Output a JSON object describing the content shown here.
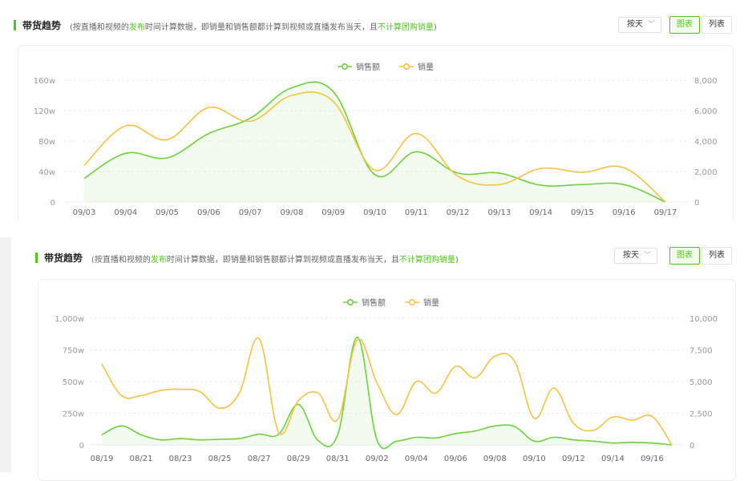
{
  "header": {
    "title": "带货趋势",
    "note_1": "(按直播和视频的",
    "note_highlight_1": "发布",
    "note_2": "时间计算数据，即销量和销售额都计算到视频或直播发布当天，且",
    "note_highlight_2": "不计算团购销量",
    "note_3": ")",
    "granularity": "按天",
    "view_chart": "图表",
    "view_list": "列表"
  },
  "colors": {
    "sales_amount": "#6fcf3f",
    "sales_volume": "#f5c146",
    "accent": "#52c41a",
    "grid": "#eeeeee",
    "tick": "#999999"
  },
  "chart_data": [
    {
      "type": "line",
      "legend_position": "top-center",
      "grid": true,
      "x": [
        "09/03",
        "09/04",
        "09/05",
        "09/06",
        "09/07",
        "09/08",
        "09/09",
        "09/10",
        "09/11",
        "09/12",
        "09/13",
        "09/14",
        "09/15",
        "09/16",
        "09/17"
      ],
      "y_left_ticks": [
        "0",
        "40w",
        "80w",
        "120w",
        "160w"
      ],
      "y_left_range": [
        0,
        160
      ],
      "y_right_ticks": [
        "0",
        "2,000",
        "4,000",
        "6,000",
        "8,000"
      ],
      "y_right_range": [
        0,
        8000
      ],
      "series": [
        {
          "name": "销售额",
          "axis": "left",
          "color": "#6fcf3f",
          "area": true,
          "values": [
            31,
            64,
            58,
            90,
            110,
            150,
            145,
            36,
            66,
            38,
            38,
            22,
            23,
            23,
            0
          ]
        },
        {
          "name": "销量",
          "axis": "right",
          "color": "#f5c146",
          "area": false,
          "values": [
            2400,
            5000,
            4100,
            6200,
            5300,
            7000,
            6600,
            2100,
            4500,
            1700,
            1150,
            2200,
            1950,
            2250,
            0
          ]
        }
      ]
    },
    {
      "type": "line",
      "legend_position": "top-center",
      "grid": true,
      "x_labels": [
        "08/19",
        "08/21",
        "08/23",
        "08/25",
        "08/27",
        "08/29",
        "08/31",
        "09/02",
        "09/04",
        "09/06",
        "09/08",
        "09/10",
        "09/12",
        "09/14",
        "09/16"
      ],
      "x": [
        "08/19",
        "08/20",
        "08/21",
        "08/22",
        "08/23",
        "08/24",
        "08/25",
        "08/26",
        "08/27",
        "08/28",
        "08/29",
        "08/30",
        "08/31",
        "09/01",
        "09/02",
        "09/03",
        "09/04",
        "09/05",
        "09/06",
        "09/07",
        "09/08",
        "09/09",
        "09/10",
        "09/11",
        "09/12",
        "09/13",
        "09/14",
        "09/15",
        "09/16",
        "09/17"
      ],
      "y_left_ticks": [
        "0",
        "250w",
        "500w",
        "750w",
        "1,000w"
      ],
      "y_left_range": [
        0,
        1000
      ],
      "y_right_ticks": [
        "0",
        "2,500",
        "5,000",
        "7,500",
        "10,000"
      ],
      "y_right_range": [
        0,
        10000
      ],
      "series": [
        {
          "name": "销售额",
          "axis": "left",
          "color": "#6fcf3f",
          "area": true,
          "values": [
            80,
            150,
            80,
            40,
            50,
            40,
            45,
            50,
            85,
            85,
            320,
            35,
            80,
            850,
            40,
            30,
            60,
            55,
            90,
            110,
            150,
            145,
            30,
            60,
            40,
            30,
            15,
            20,
            15,
            0
          ]
        },
        {
          "name": "销量",
          "axis": "right",
          "color": "#f5c146",
          "area": false,
          "values": [
            6400,
            3900,
            3900,
            4300,
            4400,
            4200,
            2900,
            4100,
            8400,
            1000,
            3500,
            4100,
            2000,
            8300,
            4900,
            2400,
            5000,
            4100,
            6200,
            5300,
            7000,
            6600,
            2100,
            4500,
            1700,
            1150,
            2200,
            1950,
            2250,
            0
          ]
        }
      ]
    }
  ]
}
